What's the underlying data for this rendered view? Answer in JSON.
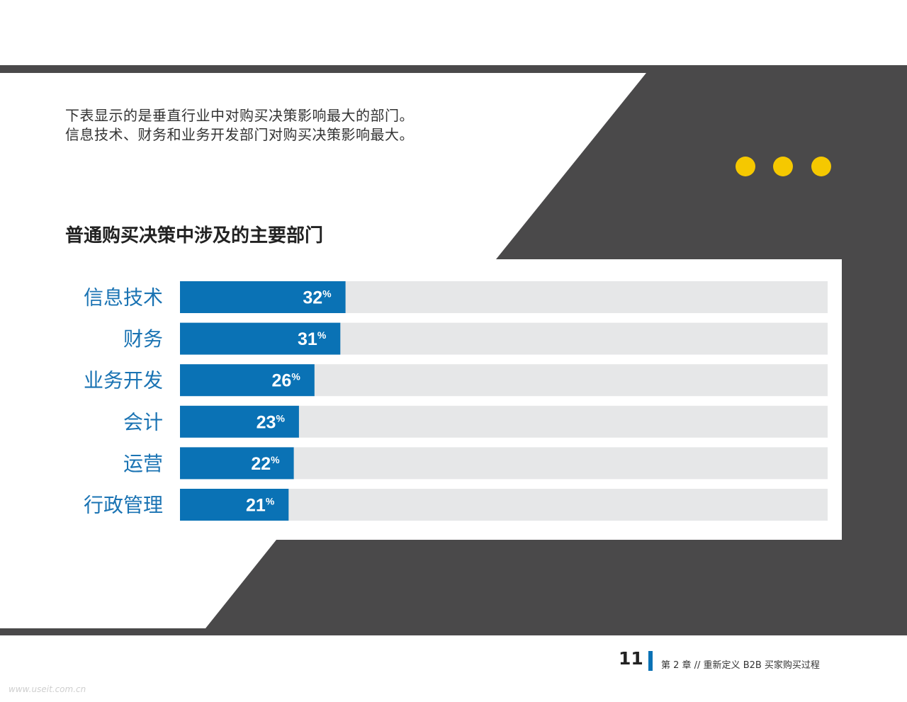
{
  "intro": {
    "line1": "下表显示的是垂直行业中对购买决策影响最大的部门。",
    "line2": "信息技术、财务和业务开发部门对购买决策影响最大。"
  },
  "colors": {
    "dark": "#4a494a",
    "accent": "#f5c800",
    "bar": "#0a72b5",
    "track": "#e6e7e8",
    "label": "#1a73b3"
  },
  "chart_data": {
    "type": "bar",
    "orientation": "horizontal",
    "title": "普通购买决策中涉及的主要部门",
    "categories": [
      "信息技术",
      "财务",
      "业务开发",
      "会计",
      "运营",
      "行政管理"
    ],
    "values": [
      32,
      31,
      26,
      23,
      22,
      21
    ],
    "unit": "%",
    "xlim": [
      0,
      100
    ],
    "grid": false,
    "legend": "none"
  },
  "footer": {
    "page_number": "11",
    "chapter": "第 2 章 // 重新定义 B2B 买家购买过程"
  },
  "watermark": "www.useit.com.cn"
}
